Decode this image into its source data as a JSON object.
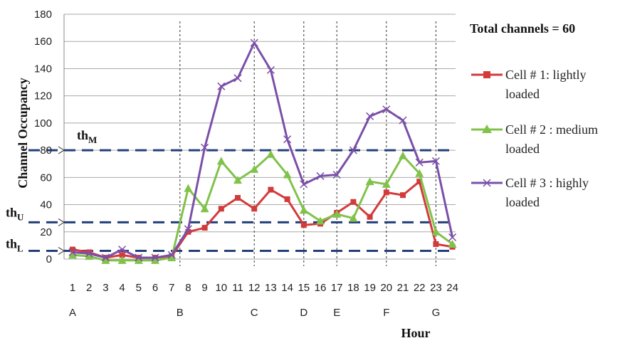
{
  "chart_data": {
    "type": "line",
    "title": "",
    "ylabel": "Channel Occupancy",
    "xlabel": "Hour",
    "ylim": [
      0,
      180
    ],
    "y_ticks": [
      0,
      20,
      40,
      60,
      80,
      100,
      120,
      140,
      160,
      180
    ],
    "x": [
      1,
      2,
      3,
      4,
      5,
      6,
      7,
      8,
      9,
      10,
      11,
      12,
      13,
      14,
      15,
      16,
      17,
      18,
      19,
      20,
      21,
      22,
      23,
      24
    ],
    "series": [
      {
        "name": "Cell # 1: lightly loaded",
        "color": "#d33b3b",
        "marker": "square",
        "values": [
          7,
          5,
          1,
          3,
          1,
          1,
          2,
          20,
          23,
          37,
          45,
          37,
          51,
          44,
          25,
          26,
          34,
          42,
          31,
          49,
          47,
          57,
          11,
          9
        ]
      },
      {
        "name": "Cell # 2 : medium loaded",
        "color": "#80c24a",
        "marker": "triangle",
        "values": [
          3,
          2,
          -1,
          -1,
          -1,
          -1,
          1,
          52,
          37,
          72,
          58,
          66,
          77,
          62,
          36,
          28,
          33,
          30,
          57,
          55,
          76,
          63,
          20,
          11
        ]
      },
      {
        "name": "Cell # 3 : highly loaded",
        "color": "#7b4fa8",
        "marker": "x",
        "values": [
          5,
          4,
          1,
          7,
          1,
          1,
          3,
          22,
          82,
          127,
          133,
          159,
          139,
          88,
          55,
          61,
          62,
          80,
          105,
          110,
          102,
          71,
          72,
          16
        ]
      }
    ],
    "thresholds": [
      {
        "label": "th",
        "sub": "M",
        "value": 80
      },
      {
        "label": "th",
        "sub": "U",
        "value": 27
      },
      {
        "label": "th",
        "sub": "L",
        "value": 6
      }
    ],
    "markers": [
      {
        "label": "A",
        "hour": 1
      },
      {
        "label": "B",
        "hour": 7.5
      },
      {
        "label": "C",
        "hour": 12
      },
      {
        "label": "D",
        "hour": 15
      },
      {
        "label": "E",
        "hour": 17
      },
      {
        "label": "F",
        "hour": 20
      },
      {
        "label": "G",
        "hour": 23
      }
    ],
    "vertical_lines_at_hours": [
      7.5,
      12,
      15,
      17,
      20,
      23
    ],
    "legend_title": "Total channels = 60",
    "legend_position": "right",
    "grid": true
  }
}
